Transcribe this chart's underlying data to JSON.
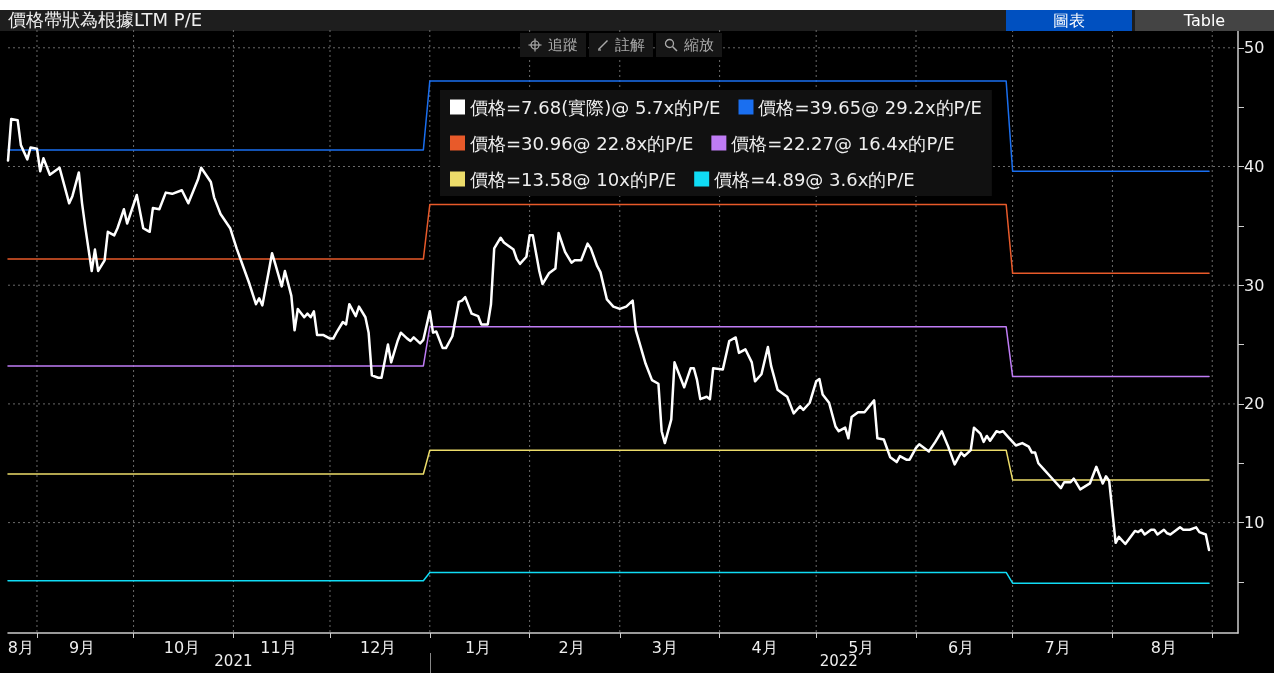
{
  "chart_data": {
    "type": "line",
    "title": "價格帶狀為根據LTM P/E",
    "annotations": [
      "追蹤",
      "註解",
      "縮放",
      "圖表",
      "Table"
    ],
    "xlim": [
      "2021-08-23",
      "2022-09-09"
    ],
    "xticks": [
      {
        "value": "2021-08-27",
        "label": "8月"
      },
      {
        "value": "2021-09-01",
        "label": null
      },
      {
        "value": "2021-09-15",
        "label": "9月"
      },
      {
        "value": "2021-10-01",
        "label": null
      },
      {
        "value": "2021-10-16",
        "label": "10月"
      },
      {
        "value": "2021-11-01",
        "label": null
      },
      {
        "value": "2021-11-15",
        "label": "11月"
      },
      {
        "value": "2021-12-01",
        "label": null
      },
      {
        "value": "2021-12-16",
        "label": "12月"
      },
      {
        "value": "2022-01-01",
        "label": null
      },
      {
        "value": "2022-01-16",
        "label": "1月"
      },
      {
        "value": "2022-02-01",
        "label": null
      },
      {
        "value": "2022-02-14",
        "label": "2月"
      },
      {
        "value": "2022-03-01",
        "label": null
      },
      {
        "value": "2022-03-15",
        "label": "3月"
      },
      {
        "value": "2022-04-01",
        "label": null
      },
      {
        "value": "2022-04-15",
        "label": "4月"
      },
      {
        "value": "2022-05-01",
        "label": null
      },
      {
        "value": "2022-05-15",
        "label": "5月"
      },
      {
        "value": "2022-06-01",
        "label": null
      },
      {
        "value": "2022-06-15",
        "label": "6月"
      },
      {
        "value": "2022-07-01",
        "label": null
      },
      {
        "value": "2022-07-15",
        "label": "7月"
      },
      {
        "value": "2022-08-01",
        "label": null
      },
      {
        "value": "2022-08-17",
        "label": "8月"
      },
      {
        "value": "2022-09-01",
        "label": null
      }
    ],
    "x2lim": [
      "2021-08-23",
      "2022-09-09"
    ],
    "x2ticks": [
      {
        "value": "2021-11-01",
        "label": "2021"
      },
      {
        "value": "2022-01-01",
        "label": null
      },
      {
        "value": "2022-05-08",
        "label": "2022"
      }
    ],
    "ylim": [
      0.7,
      51.5
    ],
    "yticks": [
      {
        "value": 5,
        "label": null
      },
      10,
      {
        "value": 15,
        "label": null
      },
      20,
      {
        "value": 25,
        "label": null
      },
      30,
      {
        "value": 35,
        "label": null
      },
      40,
      {
        "value": 45,
        "label": null
      },
      50
    ],
    "grid": true,
    "legend": "top",
    "marker": "none",
    "line_style": "solid",
    "series": [
      {
        "name": "價格=7.68(實際)@ 5.7x的P/E",
        "color": "#ffffff",
        "x": [
          "2021-08-23",
          "2021-08-24",
          "2021-08-26",
          "2021-08-27",
          "2021-08-29",
          "2021-08-30",
          "2021-09-01",
          "2021-09-02",
          "2021-09-03",
          "2021-09-05",
          "2021-09-08",
          "2021-09-11",
          "2021-09-12",
          "2021-09-14",
          "2021-09-15",
          "2021-09-16",
          "2021-09-18",
          "2021-09-19",
          "2021-09-20",
          "2021-09-22",
          "2021-09-23",
          "2021-09-25",
          "2021-09-26",
          "2021-09-28",
          "2021-09-29",
          "2021-10-02",
          "2021-10-04",
          "2021-10-06",
          "2021-10-07",
          "2021-10-09",
          "2021-10-11",
          "2021-10-13",
          "2021-10-16",
          "2021-10-18",
          "2021-10-21",
          "2021-10-22",
          "2021-10-25",
          "2021-10-26",
          "2021-10-28",
          "2021-10-31",
          "2021-11-02",
          "2021-11-04",
          "2021-11-06",
          "2021-11-08",
          "2021-11-09",
          "2021-11-10",
          "2021-11-12",
          "2021-11-13",
          "2021-11-14",
          "2021-11-16",
          "2021-11-17",
          "2021-11-19",
          "2021-11-20",
          "2021-11-21",
          "2021-11-23",
          "2021-11-24",
          "2021-11-25",
          "2021-11-26",
          "2021-11-27",
          "2021-11-29",
          "2021-12-01",
          "2021-12-02",
          "2021-12-03",
          "2021-12-05",
          "2021-12-06",
          "2021-12-07",
          "2021-12-09",
          "2021-12-10",
          "2021-12-12",
          "2021-12-13",
          "2021-12-14",
          "2021-12-16",
          "2021-12-17",
          "2021-12-19",
          "2021-12-20",
          "2021-12-22",
          "2021-12-23",
          "2021-12-25",
          "2021-12-26",
          "2021-12-27",
          "2021-12-29",
          "2021-12-30",
          "2022-01-01",
          "2022-01-02",
          "2022-01-03",
          "2022-01-05",
          "2022-01-06",
          "2022-01-08",
          "2022-01-10",
          "2022-01-11",
          "2022-01-12",
          "2022-01-14",
          "2022-01-16",
          "2022-01-17",
          "2022-01-19",
          "2022-01-20",
          "2022-01-21",
          "2022-01-23",
          "2022-01-24",
          "2022-01-27",
          "2022-01-28",
          "2022-01-29",
          "2022-01-31",
          "2022-02-01",
          "2022-02-02",
          "2022-02-04",
          "2022-02-05",
          "2022-02-07",
          "2022-02-09",
          "2022-02-10",
          "2022-02-12",
          "2022-02-14",
          "2022-02-15",
          "2022-02-17",
          "2022-02-19",
          "2022-02-20",
          "2022-02-22",
          "2022-02-23",
          "2022-02-25",
          "2022-02-27",
          "2022-03-01",
          "2022-03-03",
          "2022-03-05",
          "2022-03-06",
          "2022-03-09",
          "2022-03-11",
          "2022-03-13",
          "2022-03-14",
          "2022-03-15",
          "2022-03-17",
          "2022-03-18",
          "2022-03-21",
          "2022-03-23",
          "2022-03-24",
          "2022-03-25",
          "2022-03-26",
          "2022-03-28",
          "2022-03-29",
          "2022-03-30",
          "2022-04-02",
          "2022-04-04",
          "2022-04-06",
          "2022-04-07",
          "2022-04-09",
          "2022-04-11",
          "2022-04-12",
          "2022-04-14",
          "2022-04-16",
          "2022-04-17",
          "2022-04-19",
          "2022-04-21",
          "2022-04-22",
          "2022-04-24",
          "2022-04-26",
          "2022-04-27",
          "2022-04-29",
          "2022-05-01",
          "2022-05-02",
          "2022-05-03",
          "2022-05-05",
          "2022-05-07",
          "2022-05-08",
          "2022-05-10",
          "2022-05-11",
          "2022-05-12",
          "2022-05-14",
          "2022-05-16",
          "2022-05-19",
          "2022-05-20",
          "2022-05-22",
          "2022-05-24",
          "2022-05-26",
          "2022-05-27",
          "2022-05-29",
          "2022-05-30",
          "2022-06-01",
          "2022-06-02",
          "2022-06-05",
          "2022-06-07",
          "2022-06-09",
          "2022-06-11",
          "2022-06-13",
          "2022-06-15",
          "2022-06-16",
          "2022-06-18",
          "2022-06-19",
          "2022-06-21",
          "2022-06-22",
          "2022-06-23",
          "2022-06-24",
          "2022-06-26",
          "2022-06-27",
          "2022-06-28",
          "2022-06-30",
          "2022-07-02",
          "2022-07-04",
          "2022-07-06",
          "2022-07-07",
          "2022-07-08",
          "2022-07-09",
          "2022-07-11",
          "2022-07-13",
          "2022-07-16",
          "2022-07-17",
          "2022-07-19",
          "2022-07-20",
          "2022-07-22",
          "2022-07-25",
          "2022-07-27",
          "2022-07-29",
          "2022-07-30",
          "2022-07-31",
          "2022-08-02",
          "2022-08-03",
          "2022-08-05",
          "2022-08-08",
          "2022-08-09",
          "2022-08-10",
          "2022-08-11",
          "2022-08-13",
          "2022-08-14",
          "2022-08-15",
          "2022-08-17",
          "2022-08-18",
          "2022-08-19",
          "2022-08-22",
          "2022-08-23",
          "2022-08-25",
          "2022-08-27",
          "2022-08-28",
          "2022-08-30",
          "2022-08-31"
        ],
        "values": [
          40.5,
          44.0,
          43.9,
          41.8,
          40.6,
          41.6,
          41.5,
          39.6,
          40.7,
          39.3,
          39.9,
          36.9,
          37.5,
          39.5,
          36.9,
          34.9,
          31.2,
          33.0,
          31.2,
          32.1,
          34.5,
          34.2,
          34.8,
          36.4,
          35.2,
          37.6,
          34.8,
          34.5,
          36.5,
          36.4,
          37.8,
          37.7,
          38.0,
          36.9,
          38.9,
          39.9,
          38.7,
          37.4,
          36.0,
          34.8,
          33.1,
          31.6,
          30.1,
          28.4,
          28.9,
          28.3,
          31.2,
          32.7,
          31.8,
          29.9,
          31.2,
          29.1,
          26.2,
          28.0,
          27.3,
          27.6,
          27.3,
          27.8,
          25.8,
          25.8,
          25.5,
          25.5,
          26.0,
          26.9,
          26.7,
          28.4,
          27.4,
          28.2,
          27.3,
          26.0,
          22.4,
          22.2,
          22.2,
          25.0,
          23.5,
          25.3,
          26.0,
          25.5,
          25.3,
          25.6,
          25.1,
          25.4,
          27.8,
          26.0,
          26.1,
          24.7,
          24.7,
          25.7,
          28.6,
          28.7,
          29.0,
          27.6,
          27.4,
          26.7,
          26.7,
          28.4,
          33.1,
          34.0,
          33.6,
          33.0,
          32.2,
          31.8,
          32.4,
          34.2,
          34.2,
          31.2,
          30.1,
          31.0,
          31.4,
          34.4,
          32.8,
          31.9,
          32.1,
          32.1,
          33.5,
          33.1,
          31.6,
          31.1,
          28.8,
          28.2,
          28.0,
          28.2,
          28.7,
          26.2,
          23.4,
          22.0,
          21.7,
          17.7,
          16.7,
          18.7,
          23.5,
          21.4,
          23.0,
          23.0,
          22.0,
          20.4,
          20.6,
          20.4,
          23.0,
          22.9,
          25.3,
          25.6,
          24.3,
          24.6,
          23.5,
          21.9,
          22.5,
          24.8,
          23.2,
          21.2,
          20.8,
          20.6,
          19.2,
          19.8,
          19.5,
          20.1,
          21.9,
          22.1,
          20.8,
          20.1,
          18.1,
          17.7,
          18.0,
          17.1,
          18.9,
          19.3,
          19.3,
          20.3,
          17.1,
          17.0,
          15.5,
          15.1,
          15.6,
          15.3,
          15.3,
          16.3,
          16.6,
          16.0,
          16.8,
          17.7,
          16.4,
          14.9,
          15.9,
          15.6,
          16.1,
          18.0,
          17.5,
          16.8,
          17.3,
          16.9,
          17.7,
          17.6,
          17.7,
          17.1,
          16.5,
          16.7,
          16.4,
          15.9,
          15.9,
          15.0,
          14.4,
          13.8,
          12.9,
          13.4,
          13.4,
          13.7,
          12.8,
          13.3,
          14.7,
          13.3,
          13.9,
          13.5,
          8.3,
          8.8,
          8.2,
          9.3,
          9.2,
          9.4,
          9.0,
          9.4,
          9.4,
          9.0,
          9.4,
          9.1,
          9.0,
          9.6,
          9.4,
          9.4,
          9.6,
          9.2,
          9.0,
          7.7
        ]
      },
      {
        "name": "價格=39.65@ 29.2x的P/E",
        "color": "#1a6ff0",
        "x": [
          "2021-08-23",
          "2021-12-30",
          "2022-01-01",
          "2022-06-29",
          "2022-07-01",
          "2022-08-31"
        ],
        "values": [
          41.4,
          41.4,
          47.2,
          47.2,
          39.6,
          39.6
        ]
      },
      {
        "name": "價格=30.96@ 22.8x的P/E",
        "color": "#e85a2a",
        "x": [
          "2021-08-23",
          "2021-12-30",
          "2022-01-01",
          "2022-06-29",
          "2022-07-01",
          "2022-08-31"
        ],
        "values": [
          32.2,
          32.2,
          36.8,
          36.8,
          31.0,
          31.0
        ]
      },
      {
        "name": "價格=22.27@ 16.4x的P/E",
        "color": "#bf7cf5",
        "x": [
          "2021-08-23",
          "2021-12-30",
          "2022-01-01",
          "2022-06-29",
          "2022-07-01",
          "2022-08-31"
        ],
        "values": [
          23.2,
          23.2,
          26.5,
          26.5,
          22.3,
          22.3
        ]
      },
      {
        "name": "價格=13.58@ 10x的P/E",
        "color": "#ecdc6a",
        "x": [
          "2021-08-23",
          "2021-12-30",
          "2022-01-01",
          "2022-06-29",
          "2022-07-01",
          "2022-08-31"
        ],
        "values": [
          14.1,
          14.1,
          16.1,
          16.1,
          13.6,
          13.6
        ]
      },
      {
        "name": "價格=4.89@ 3.6x的P/E",
        "color": "#10dcf5",
        "x": [
          "2021-08-23",
          "2021-12-30",
          "2022-01-01",
          "2022-06-29",
          "2022-07-01",
          "2022-08-31"
        ],
        "values": [
          5.1,
          5.1,
          5.8,
          5.8,
          4.9,
          4.9
        ]
      }
    ]
  }
}
